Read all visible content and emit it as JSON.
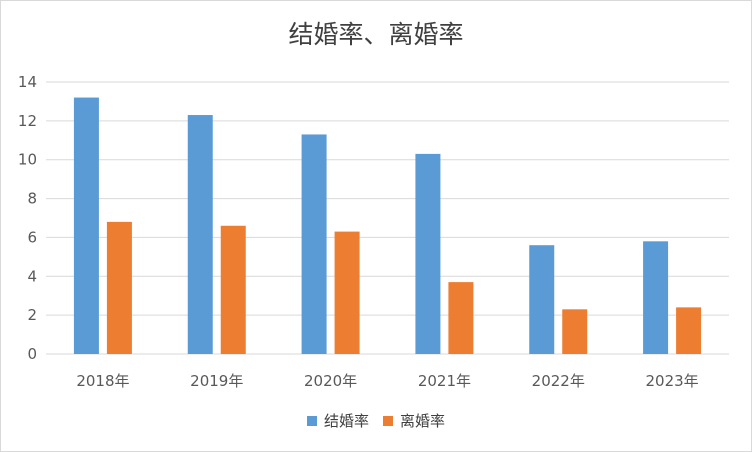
{
  "chart_data": {
    "type": "bar",
    "title": "结婚率、离婚率",
    "categories": [
      "2018年",
      "2019年",
      "2020年",
      "2021年",
      "2022年",
      "2023年"
    ],
    "series": [
      {
        "name": "结婚率",
        "color": "#5b9bd5",
        "values": [
          13.2,
          12.3,
          11.3,
          10.3,
          5.6,
          5.8
        ]
      },
      {
        "name": "离婚率",
        "color": "#ed7d31",
        "values": [
          6.8,
          6.6,
          6.3,
          3.7,
          2.3,
          2.4
        ]
      }
    ],
    "ylim": [
      0,
      14
    ],
    "yticks": [
      "0",
      "2",
      "4",
      "6",
      "8",
      "10",
      "12",
      "14"
    ],
    "grid": true,
    "legend_position": "bottom"
  }
}
